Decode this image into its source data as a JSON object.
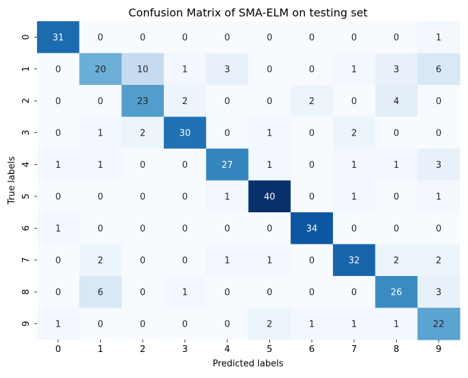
{
  "chart_data": {
    "type": "heatmap",
    "title": "Confusion Matrix of SMA-ELM on testing set",
    "xlabel": "Predicted labels",
    "ylabel": "True labels",
    "x_categories": [
      "0",
      "1",
      "2",
      "3",
      "4",
      "5",
      "6",
      "7",
      "8",
      "9"
    ],
    "y_categories": [
      "0",
      "1",
      "2",
      "3",
      "4",
      "5",
      "6",
      "7",
      "8",
      "9"
    ],
    "colormap": "Blues",
    "value_range": [
      0,
      40
    ],
    "colorbar": false,
    "grid": false,
    "matrix": [
      [
        31,
        0,
        0,
        0,
        0,
        0,
        0,
        0,
        0,
        1
      ],
      [
        0,
        20,
        10,
        1,
        3,
        0,
        0,
        1,
        3,
        6
      ],
      [
        0,
        0,
        23,
        2,
        0,
        0,
        2,
        0,
        4,
        0
      ],
      [
        0,
        1,
        2,
        30,
        0,
        1,
        0,
        2,
        0,
        0
      ],
      [
        1,
        1,
        0,
        0,
        27,
        1,
        0,
        1,
        1,
        3
      ],
      [
        0,
        0,
        0,
        0,
        1,
        40,
        0,
        1,
        0,
        1
      ],
      [
        1,
        0,
        0,
        0,
        0,
        0,
        34,
        0,
        0,
        0
      ],
      [
        0,
        2,
        0,
        0,
        1,
        1,
        0,
        32,
        2,
        2
      ],
      [
        0,
        6,
        0,
        1,
        0,
        0,
        0,
        0,
        26,
        3
      ],
      [
        1,
        0,
        0,
        0,
        0,
        2,
        1,
        1,
        1,
        22
      ]
    ]
  }
}
